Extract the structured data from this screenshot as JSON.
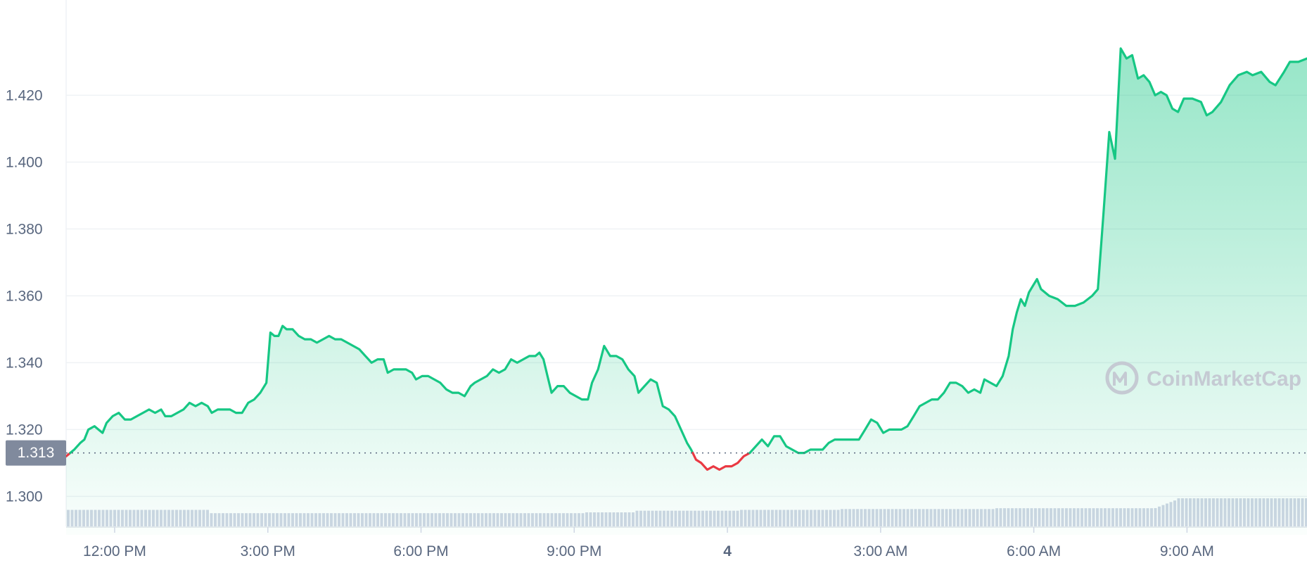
{
  "chart_data": {
    "type": "area",
    "watermark": "CoinMarketCap",
    "reference_value_label": "1.313",
    "reference_value": 1.313,
    "y_ticks": [
      "1.300",
      "1.320",
      "1.340",
      "1.360",
      "1.380",
      "1.400",
      "1.420"
    ],
    "y_tick_values": [
      1.3,
      1.32,
      1.34,
      1.36,
      1.38,
      1.4,
      1.42
    ],
    "ylim": [
      1.2885,
      1.4485
    ],
    "x_ticks": [
      {
        "label": "12:00 PM",
        "t": 0.8,
        "bold": false
      },
      {
        "label": "3:00 PM",
        "t": 3.8,
        "bold": false
      },
      {
        "label": "6:00 PM",
        "t": 6.8,
        "bold": false
      },
      {
        "label": "9:00 PM",
        "t": 9.8,
        "bold": false
      },
      {
        "label": "4",
        "t": 12.8,
        "bold": true
      },
      {
        "label": "3:00 AM",
        "t": 15.8,
        "bold": false
      },
      {
        "label": "6:00 AM",
        "t": 18.8,
        "bold": false
      },
      {
        "label": "9:00 AM",
        "t": 21.8,
        "bold": false
      }
    ],
    "xlim": [
      -0.15,
      24.15
    ],
    "grid": true,
    "colors": {
      "up": "#16c784",
      "down": "#ea3943",
      "grid": "#eff2f5",
      "volume": "#cfd6e4",
      "ref_box": "#808a9d"
    },
    "series": [
      {
        "values": [
          [
            -0.15,
            1.312
          ],
          [
            0.05,
            1.314
          ],
          [
            0.2,
            1.316
          ],
          [
            0.3,
            1.317
          ],
          [
            0.4,
            1.32
          ],
          [
            0.55,
            1.321
          ],
          [
            0.65,
            1.32
          ],
          [
            0.75,
            1.319
          ],
          [
            0.85,
            1.322
          ],
          [
            1.0,
            1.324
          ],
          [
            1.15,
            1.325
          ],
          [
            1.3,
            1.323
          ],
          [
            1.45,
            1.323
          ],
          [
            1.6,
            1.324
          ],
          [
            1.75,
            1.325
          ],
          [
            1.9,
            1.326
          ],
          [
            2.05,
            1.325
          ],
          [
            2.2,
            1.326
          ],
          [
            2.3,
            1.324
          ],
          [
            2.45,
            1.324
          ],
          [
            2.6,
            1.325
          ],
          [
            2.75,
            1.326
          ],
          [
            2.9,
            1.328
          ],
          [
            3.05,
            1.327
          ],
          [
            3.2,
            1.328
          ],
          [
            3.35,
            1.327
          ],
          [
            3.45,
            1.325
          ],
          [
            3.6,
            1.326
          ],
          [
            3.75,
            1.326
          ],
          [
            3.9,
            1.326
          ],
          [
            4.05,
            1.325
          ],
          [
            4.2,
            1.325
          ],
          [
            4.35,
            1.328
          ],
          [
            4.5,
            1.329
          ],
          [
            4.65,
            1.331
          ],
          [
            4.8,
            1.334
          ],
          [
            4.9,
            1.349
          ],
          [
            5.0,
            1.348
          ],
          [
            5.1,
            1.348
          ],
          [
            5.2,
            1.351
          ],
          [
            5.3,
            1.35
          ],
          [
            5.45,
            1.35
          ],
          [
            5.6,
            1.348
          ],
          [
            5.75,
            1.347
          ],
          [
            5.9,
            1.347
          ],
          [
            6.05,
            1.346
          ],
          [
            6.2,
            1.347
          ],
          [
            6.35,
            1.348
          ],
          [
            6.5,
            1.347
          ],
          [
            6.65,
            1.347
          ],
          [
            6.8,
            1.346
          ],
          [
            6.95,
            1.345
          ],
          [
            7.1,
            1.344
          ],
          [
            7.25,
            1.342
          ],
          [
            7.4,
            1.34
          ],
          [
            7.55,
            1.341
          ],
          [
            7.7,
            1.341
          ],
          [
            7.8,
            1.337
          ],
          [
            7.95,
            1.338
          ],
          [
            8.1,
            1.338
          ],
          [
            8.25,
            1.338
          ],
          [
            8.4,
            1.337
          ],
          [
            8.5,
            1.335
          ],
          [
            8.65,
            1.336
          ],
          [
            8.8,
            1.336
          ],
          [
            8.95,
            1.335
          ],
          [
            9.1,
            1.334
          ],
          [
            9.25,
            1.332
          ],
          [
            9.4,
            1.331
          ],
          [
            9.55,
            1.331
          ],
          [
            9.7,
            1.33
          ],
          [
            9.85,
            1.333
          ],
          [
            9.95,
            1.334
          ],
          [
            10.1,
            1.335
          ],
          [
            10.25,
            1.336
          ],
          [
            10.4,
            1.338
          ],
          [
            10.55,
            1.337
          ],
          [
            10.7,
            1.338
          ],
          [
            10.85,
            1.341
          ],
          [
            11.0,
            1.34
          ],
          [
            11.15,
            1.341
          ],
          [
            11.3,
            1.342
          ],
          [
            11.45,
            1.342
          ],
          [
            11.55,
            1.343
          ],
          [
            11.65,
            1.341
          ],
          [
            11.75,
            1.336
          ],
          [
            11.85,
            1.331
          ],
          [
            12.0,
            1.333
          ],
          [
            12.15,
            1.333
          ],
          [
            12.3,
            1.331
          ],
          [
            12.45,
            1.33
          ],
          [
            12.6,
            1.329
          ],
          [
            12.75,
            1.329
          ],
          [
            12.85,
            1.334
          ],
          [
            13.0,
            1.338
          ],
          [
            13.15,
            1.345
          ],
          [
            13.3,
            1.342
          ],
          [
            13.45,
            1.342
          ],
          [
            13.6,
            1.341
          ],
          [
            13.75,
            1.338
          ],
          [
            13.9,
            1.336
          ],
          [
            14.0,
            1.331
          ],
          [
            14.15,
            1.333
          ],
          [
            14.3,
            1.335
          ],
          [
            14.45,
            1.334
          ],
          [
            14.6,
            1.327
          ],
          [
            14.75,
            1.326
          ],
          [
            14.9,
            1.324
          ],
          [
            15.05,
            1.32
          ],
          [
            15.2,
            1.316
          ],
          [
            15.3,
            1.314
          ],
          [
            15.42,
            1.311
          ],
          [
            15.55,
            1.31
          ],
          [
            15.7,
            1.308
          ],
          [
            15.85,
            1.309
          ],
          [
            16.0,
            1.308
          ],
          [
            16.15,
            1.309
          ],
          [
            16.3,
            1.309
          ],
          [
            16.45,
            1.31
          ],
          [
            16.6,
            1.312
          ],
          [
            16.75,
            1.313
          ],
          [
            16.9,
            1.315
          ],
          [
            17.05,
            1.317
          ],
          [
            17.2,
            1.315
          ],
          [
            17.35,
            1.318
          ],
          [
            17.5,
            1.318
          ],
          [
            17.65,
            1.315
          ],
          [
            17.8,
            1.314
          ],
          [
            17.95,
            1.313
          ],
          [
            18.1,
            1.313
          ],
          [
            18.25,
            1.314
          ],
          [
            18.4,
            1.314
          ],
          [
            18.55,
            1.314
          ],
          [
            18.7,
            1.316
          ],
          [
            18.85,
            1.317
          ],
          [
            19.0,
            1.317
          ],
          [
            19.15,
            1.317
          ],
          [
            19.3,
            1.317
          ],
          [
            19.45,
            1.317
          ],
          [
            19.6,
            1.32
          ],
          [
            19.75,
            1.323
          ],
          [
            19.9,
            1.322
          ],
          [
            20.05,
            1.319
          ],
          [
            20.2,
            1.32
          ],
          [
            20.35,
            1.32
          ],
          [
            20.5,
            1.32
          ],
          [
            20.65,
            1.321
          ],
          [
            20.8,
            1.324
          ],
          [
            20.95,
            1.327
          ],
          [
            21.1,
            1.328
          ],
          [
            21.25,
            1.329
          ],
          [
            21.4,
            1.329
          ],
          [
            21.55,
            1.331
          ],
          [
            21.7,
            1.334
          ],
          [
            21.85,
            1.334
          ],
          [
            22.0,
            1.333
          ],
          [
            22.15,
            1.331
          ],
          [
            22.3,
            1.332
          ],
          [
            22.45,
            1.331
          ],
          [
            22.55,
            1.335
          ],
          [
            22.7,
            1.334
          ],
          [
            22.85,
            1.333
          ],
          [
            23.0,
            1.336
          ],
          [
            23.15,
            1.342
          ],
          [
            23.25,
            1.35
          ],
          [
            23.35,
            1.355
          ],
          [
            23.45,
            1.359
          ],
          [
            23.55,
            1.357
          ],
          [
            23.65,
            1.361
          ],
          [
            23.75,
            1.363
          ],
          [
            23.85,
            1.365
          ],
          [
            23.95,
            1.362
          ],
          [
            24.15,
            1.36
          ]
        ]
      }
    ],
    "late_segment": [
      [
        0.0,
        1.36
      ],
      [
        0.15,
        1.359
      ],
      [
        0.3,
        1.357
      ],
      [
        0.45,
        1.357
      ],
      [
        0.6,
        1.358
      ],
      [
        0.75,
        1.36
      ],
      [
        0.85,
        1.362
      ],
      [
        0.95,
        1.385
      ],
      [
        1.05,
        1.409
      ],
      [
        1.15,
        1.401
      ],
      [
        1.25,
        1.434
      ],
      [
        1.35,
        1.431
      ],
      [
        1.45,
        1.432
      ],
      [
        1.55,
        1.425
      ],
      [
        1.65,
        1.426
      ],
      [
        1.75,
        1.424
      ],
      [
        1.85,
        1.42
      ],
      [
        1.95,
        1.421
      ],
      [
        2.05,
        1.42
      ],
      [
        2.15,
        1.416
      ],
      [
        2.25,
        1.415
      ],
      [
        2.35,
        1.419
      ],
      [
        2.5,
        1.419
      ],
      [
        2.65,
        1.418
      ],
      [
        2.75,
        1.414
      ],
      [
        2.85,
        1.415
      ],
      [
        3.0,
        1.418
      ],
      [
        3.15,
        1.423
      ],
      [
        3.3,
        1.426
      ],
      [
        3.45,
        1.427
      ],
      [
        3.55,
        1.426
      ],
      [
        3.7,
        1.427
      ],
      [
        3.85,
        1.424
      ],
      [
        3.95,
        1.423
      ],
      [
        4.1,
        1.427
      ],
      [
        4.2,
        1.43
      ],
      [
        4.35,
        1.43
      ],
      [
        4.5,
        1.431
      ]
    ],
    "volume_levels": [
      [
        0,
        0.2
      ],
      [
        1.6,
        0.2
      ],
      [
        2.6,
        0.16
      ],
      [
        3.8,
        0.16
      ],
      [
        5.3,
        0.16
      ],
      [
        7.0,
        0.16
      ],
      [
        10.0,
        0.17
      ],
      [
        11.0,
        0.19
      ],
      [
        13.0,
        0.2
      ],
      [
        15.0,
        0.21
      ],
      [
        18.0,
        0.22
      ],
      [
        20.5,
        0.22
      ],
      [
        22.8,
        0.25
      ],
      [
        23.8,
        0.25
      ],
      [
        24.15,
        0.28
      ]
    ]
  }
}
